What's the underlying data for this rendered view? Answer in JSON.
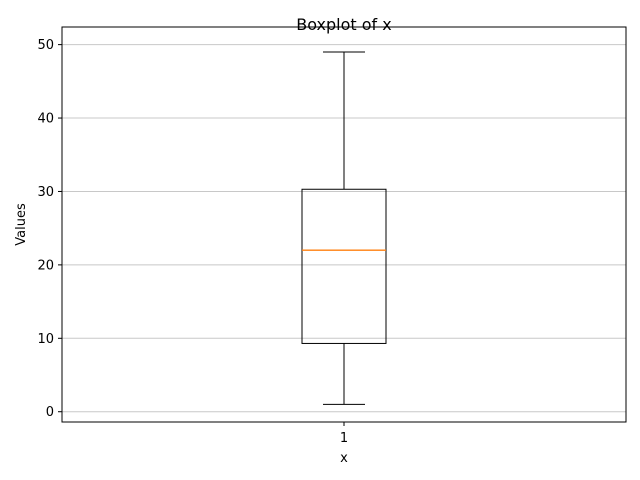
{
  "chart_data": {
    "type": "box",
    "title": "Boxplot of x",
    "xlabel": "x",
    "ylabel": "Values",
    "categories": [
      "1"
    ],
    "y_ticks": [
      0,
      10,
      20,
      30,
      40,
      50
    ],
    "ylim": [
      -1.4,
      52.4
    ],
    "grid": {
      "y": true,
      "x": false
    },
    "series": [
      {
        "category": "1",
        "whisker_low": 1,
        "q1": 9.3,
        "median": 22,
        "q3": 30.3,
        "whisker_high": 49
      }
    ],
    "colors": {
      "box": "#000000",
      "median": "#ff7f0e",
      "grid": "#c8c8c8"
    }
  }
}
